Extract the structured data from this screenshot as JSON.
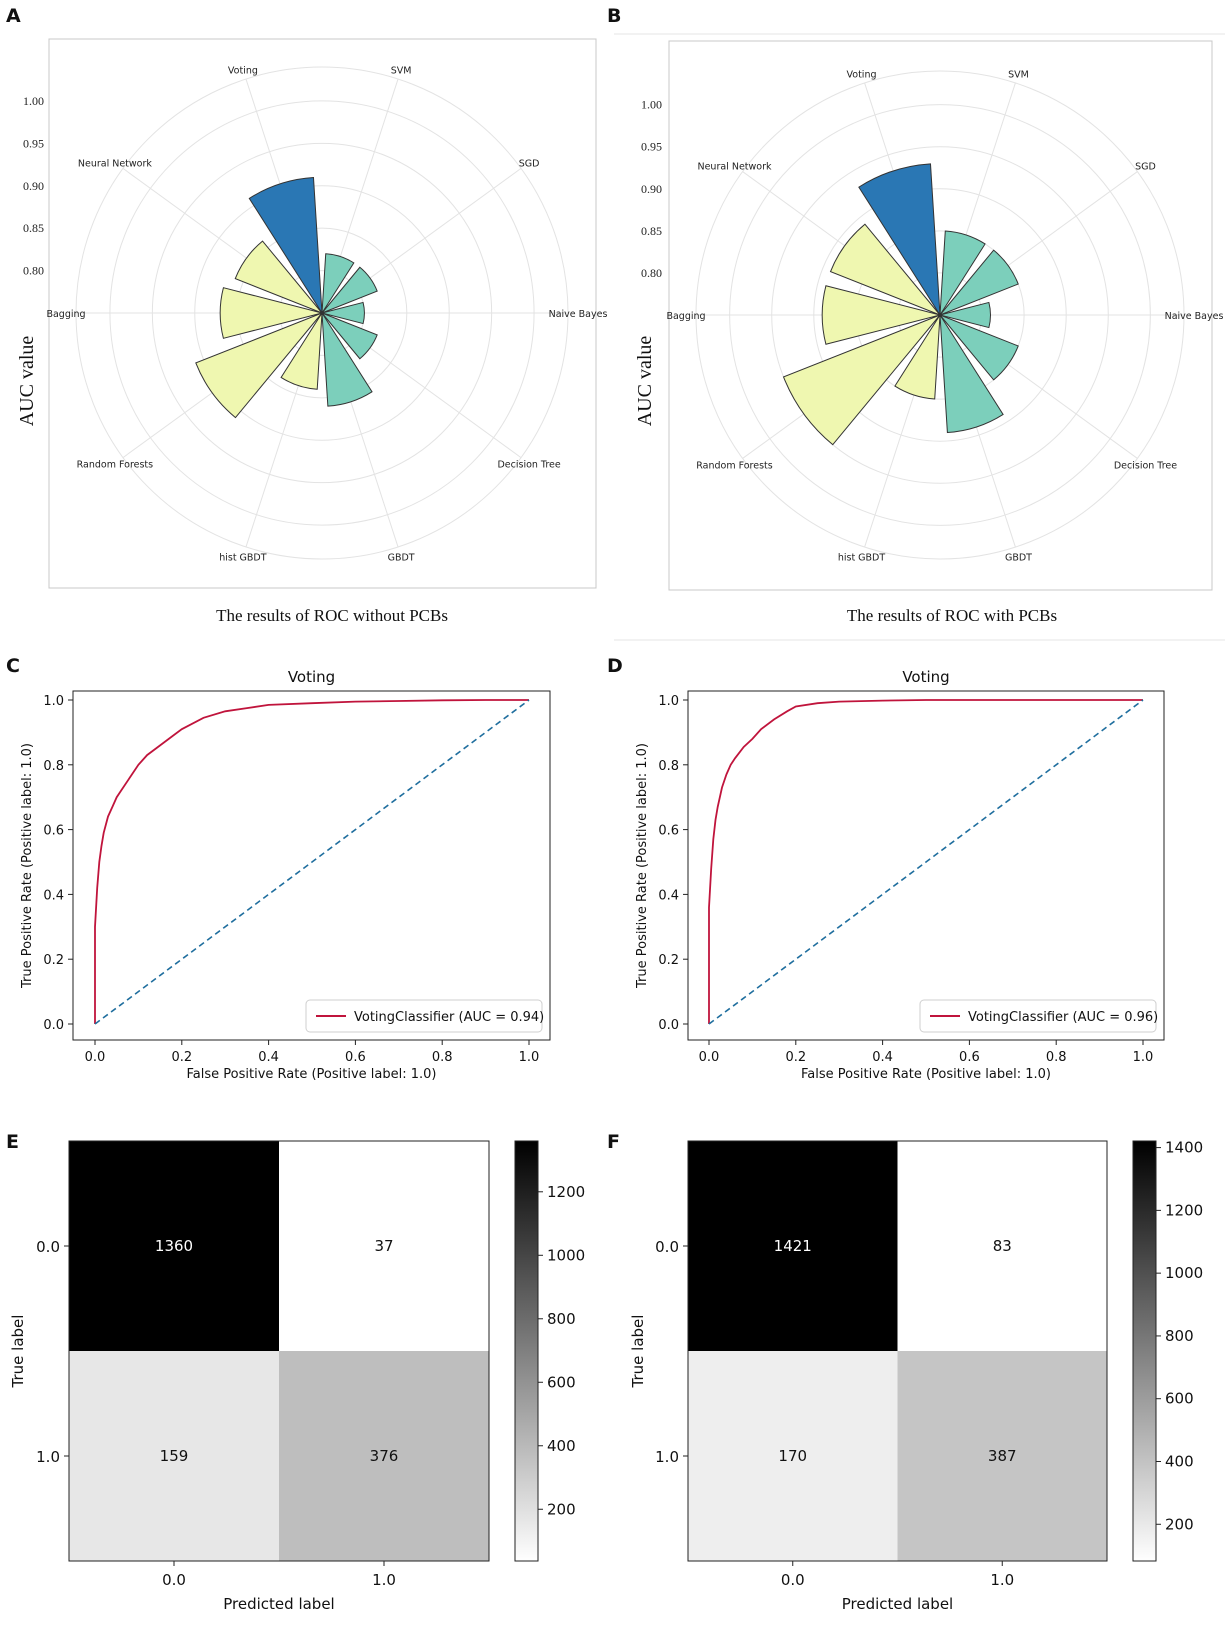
{
  "panel_letters": [
    "A",
    "B",
    "C",
    "D",
    "E",
    "F"
  ],
  "chart_data": [
    {
      "id": "A",
      "type": "bar",
      "subtype": "polar",
      "caption": "The results of ROC without PCBs",
      "ylabel": "AUC value",
      "radial_ticks": [
        "0.80",
        "0.85",
        "0.90",
        "0.95",
        "1.00"
      ],
      "ylim": [
        0.75,
        1.04
      ],
      "categories": [
        "Naive Bayes",
        "SGD",
        "SVM",
        "Voting",
        "Neural Network",
        "Bagging",
        "Random Forests",
        "hist GBDT",
        "GBDT",
        "Decision Tree"
      ],
      "values": [
        0.8,
        0.82,
        0.82,
        0.91,
        0.86,
        0.87,
        0.91,
        0.84,
        0.86,
        0.82
      ],
      "groups": [
        "mid",
        "mid",
        "mid",
        "dark",
        "light",
        "light",
        "light",
        "light",
        "mid",
        "mid"
      ],
      "colors": {
        "dark": "#2a77b4",
        "mid": "#7ccfbb",
        "light": "#eff7b0"
      }
    },
    {
      "id": "B",
      "type": "bar",
      "subtype": "polar",
      "caption": "The results of ROC with PCBs",
      "ylabel": "AUC value",
      "radial_ticks": [
        "0.80",
        "0.85",
        "0.90",
        "0.95",
        "1.00"
      ],
      "ylim": [
        0.75,
        1.04
      ],
      "categories": [
        "Naive Bayes",
        "SGD",
        "SVM",
        "Voting",
        "Neural Network",
        "Bagging",
        "Random Forests",
        "hist GBDT",
        "GBDT",
        "Decision Tree"
      ],
      "values": [
        0.81,
        0.85,
        0.85,
        0.93,
        0.89,
        0.89,
        0.95,
        0.85,
        0.89,
        0.85
      ],
      "groups": [
        "mid",
        "mid",
        "mid",
        "dark",
        "light",
        "light",
        "light",
        "light",
        "mid",
        "mid"
      ],
      "colors": {
        "dark": "#2a77b4",
        "mid": "#7ccfbb",
        "light": "#eff7b0"
      }
    },
    {
      "id": "C",
      "type": "line",
      "title": "Voting",
      "xlabel": "False Positive Rate (Positive label: 1.0)",
      "ylabel": "True Positive Rate (Positive label: 1.0)",
      "xlim": [
        0,
        1
      ],
      "ylim": [
        0,
        1
      ],
      "ticks": [
        "0.0",
        "0.2",
        "0.4",
        "0.6",
        "0.8",
        "1.0"
      ],
      "legend": "VotingClassifier (AUC = 0.94)",
      "legend_position": "lower-right",
      "series": [
        {
          "name": "VotingClassifier",
          "color": "#c0143c",
          "x": [
            0,
            0,
            0.005,
            0.01,
            0.015,
            0.02,
            0.03,
            0.04,
            0.05,
            0.06,
            0.08,
            0.1,
            0.12,
            0.15,
            0.18,
            0.2,
            0.25,
            0.3,
            0.35,
            0.4,
            0.5,
            0.6,
            0.7,
            0.8,
            0.9,
            1.0
          ],
          "y": [
            0,
            0.3,
            0.42,
            0.5,
            0.55,
            0.59,
            0.64,
            0.67,
            0.7,
            0.72,
            0.76,
            0.8,
            0.83,
            0.86,
            0.89,
            0.91,
            0.945,
            0.965,
            0.975,
            0.985,
            0.99,
            0.995,
            0.997,
            0.999,
            1.0,
            1.0
          ]
        },
        {
          "name": "chance",
          "color": "#1f6e9e",
          "dashed": true,
          "x": [
            0,
            1
          ],
          "y": [
            0,
            1
          ]
        }
      ]
    },
    {
      "id": "D",
      "type": "line",
      "title": "Voting",
      "xlabel": "False Positive Rate (Positive label: 1.0)",
      "ylabel": "True Positive Rate (Positive label: 1.0)",
      "xlim": [
        0,
        1
      ],
      "ylim": [
        0,
        1
      ],
      "ticks": [
        "0.0",
        "0.2",
        "0.4",
        "0.6",
        "0.8",
        "1.0"
      ],
      "legend": "VotingClassifier (AUC = 0.96)",
      "legend_position": "lower-right",
      "series": [
        {
          "name": "VotingClassifier",
          "color": "#c0143c",
          "x": [
            0,
            0,
            0.005,
            0.01,
            0.015,
            0.02,
            0.03,
            0.04,
            0.05,
            0.06,
            0.08,
            0.1,
            0.12,
            0.15,
            0.18,
            0.2,
            0.25,
            0.3,
            0.4,
            0.5,
            0.6,
            0.8,
            1.0
          ],
          "y": [
            0,
            0.36,
            0.48,
            0.57,
            0.63,
            0.67,
            0.73,
            0.77,
            0.8,
            0.82,
            0.855,
            0.88,
            0.91,
            0.94,
            0.965,
            0.98,
            0.99,
            0.995,
            0.998,
            1.0,
            1.0,
            1.0,
            1.0
          ]
        },
        {
          "name": "chance",
          "color": "#1f6e9e",
          "dashed": true,
          "x": [
            0,
            1
          ],
          "y": [
            0,
            1
          ]
        }
      ]
    },
    {
      "id": "E",
      "type": "heatmap",
      "xlabel": "Predicted label",
      "ylabel": "True label",
      "x_categories": [
        "0.0",
        "1.0"
      ],
      "y_categories": [
        "0.0",
        "1.0"
      ],
      "values": [
        [
          1360,
          37
        ],
        [
          159,
          376
        ]
      ],
      "colorbar_range": [
        37,
        1360
      ],
      "colorbar_ticks": [
        200,
        400,
        600,
        800,
        1000,
        1200
      ]
    },
    {
      "id": "F",
      "type": "heatmap",
      "xlabel": "Predicted label",
      "ylabel": "True label",
      "x_categories": [
        "0.0",
        "1.0"
      ],
      "y_categories": [
        "0.0",
        "1.0"
      ],
      "values": [
        [
          1421,
          83
        ],
        [
          170,
          387
        ]
      ],
      "colorbar_range": [
        83,
        1421
      ],
      "colorbar_ticks": [
        200,
        400,
        600,
        800,
        1000,
        1200,
        1400
      ]
    }
  ]
}
